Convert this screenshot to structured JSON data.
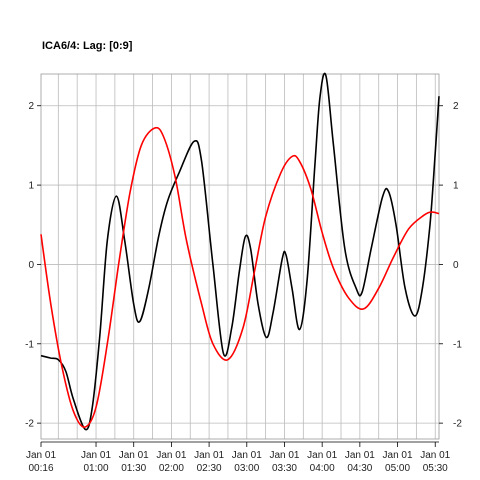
{
  "chart_data": {
    "type": "line",
    "title": "ICA6/4:  Lag: [0:9]",
    "xlabel": "",
    "ylabel": "",
    "xlim": [
      0.27,
      5.55
    ],
    "ylim": [
      -2.2,
      2.4
    ],
    "grid": true,
    "legend": "none",
    "x_ticks": [
      {
        "value": 0.27,
        "line1": "Jan 01",
        "line2": "00:16"
      },
      {
        "value": 1.0,
        "line1": "Jan 01",
        "line2": "01:00"
      },
      {
        "value": 1.5,
        "line1": "Jan 01",
        "line2": "01:30"
      },
      {
        "value": 2.0,
        "line1": "Jan 01",
        "line2": "02:00"
      },
      {
        "value": 2.5,
        "line1": "Jan 01",
        "line2": "02:30"
      },
      {
        "value": 3.0,
        "line1": "Jan 01",
        "line2": "03:00"
      },
      {
        "value": 3.5,
        "line1": "Jan 01",
        "line2": "03:30"
      },
      {
        "value": 4.0,
        "line1": "Jan 01",
        "line2": "04:00"
      },
      {
        "value": 4.5,
        "line1": "Jan 01",
        "line2": "04:30"
      },
      {
        "value": 5.0,
        "line1": "Jan 01",
        "line2": "05:00"
      },
      {
        "value": 5.5,
        "line1": "Jan 01",
        "line2": "05:30"
      }
    ],
    "x_minor_grid": [
      0.25,
      0.5,
      0.75,
      1.0,
      1.25,
      1.5,
      1.75,
      2.0,
      2.25,
      2.5,
      2.75,
      3.0,
      3.25,
      3.5,
      3.75,
      4.0,
      4.25,
      4.5,
      4.75,
      5.0,
      5.25,
      5.5
    ],
    "y_ticks": [
      -2,
      -1,
      0,
      1,
      2
    ],
    "series": [
      {
        "color": "#000000",
        "points": [
          [
            0.27,
            -1.15
          ],
          [
            0.4,
            -1.18
          ],
          [
            0.5,
            -1.2
          ],
          [
            0.6,
            -1.35
          ],
          [
            0.7,
            -1.7
          ],
          [
            0.86,
            -2.08
          ],
          [
            0.95,
            -1.8
          ],
          [
            1.05,
            -0.9
          ],
          [
            1.15,
            0.3
          ],
          [
            1.27,
            0.86
          ],
          [
            1.38,
            0.3
          ],
          [
            1.5,
            -0.5
          ],
          [
            1.58,
            -0.72
          ],
          [
            1.7,
            -0.3
          ],
          [
            1.83,
            0.35
          ],
          [
            1.95,
            0.8
          ],
          [
            2.1,
            1.15
          ],
          [
            2.3,
            1.55
          ],
          [
            2.4,
            1.3
          ],
          [
            2.55,
            0.0
          ],
          [
            2.69,
            -1.12
          ],
          [
            2.8,
            -0.8
          ],
          [
            2.9,
            -0.1
          ],
          [
            2.98,
            0.35
          ],
          [
            3.05,
            0.2
          ],
          [
            3.15,
            -0.5
          ],
          [
            3.26,
            -0.92
          ],
          [
            3.35,
            -0.6
          ],
          [
            3.47,
            0.07
          ],
          [
            3.52,
            0.12
          ],
          [
            3.6,
            -0.3
          ],
          [
            3.7,
            -0.82
          ],
          [
            3.8,
            -0.2
          ],
          [
            3.9,
            1.2
          ],
          [
            3.97,
            2.1
          ],
          [
            4.05,
            2.38
          ],
          [
            4.15,
            1.5
          ],
          [
            4.3,
            0.2
          ],
          [
            4.45,
            -0.3
          ],
          [
            4.53,
            -0.35
          ],
          [
            4.65,
            0.2
          ],
          [
            4.8,
            0.85
          ],
          [
            4.88,
            0.92
          ],
          [
            4.98,
            0.5
          ],
          [
            5.1,
            -0.3
          ],
          [
            5.23,
            -0.65
          ],
          [
            5.33,
            -0.3
          ],
          [
            5.43,
            0.5
          ],
          [
            5.5,
            1.4
          ],
          [
            5.55,
            2.12
          ]
        ]
      },
      {
        "color": "#ff0000",
        "points": [
          [
            0.27,
            0.38
          ],
          [
            0.4,
            -0.5
          ],
          [
            0.55,
            -1.3
          ],
          [
            0.7,
            -1.85
          ],
          [
            0.85,
            -2.05
          ],
          [
            1.0,
            -1.8
          ],
          [
            1.15,
            -1.0
          ],
          [
            1.3,
            0.0
          ],
          [
            1.45,
            0.9
          ],
          [
            1.6,
            1.5
          ],
          [
            1.78,
            1.72
          ],
          [
            1.9,
            1.6
          ],
          [
            2.05,
            1.1
          ],
          [
            2.2,
            0.3
          ],
          [
            2.4,
            -0.5
          ],
          [
            2.55,
            -1.0
          ],
          [
            2.75,
            -1.2
          ],
          [
            2.95,
            -0.8
          ],
          [
            3.1,
            -0.1
          ],
          [
            3.25,
            0.6
          ],
          [
            3.45,
            1.15
          ],
          [
            3.6,
            1.36
          ],
          [
            3.7,
            1.3
          ],
          [
            3.85,
            0.95
          ],
          [
            4.0,
            0.4
          ],
          [
            4.15,
            -0.05
          ],
          [
            4.35,
            -0.42
          ],
          [
            4.55,
            -0.56
          ],
          [
            4.75,
            -0.3
          ],
          [
            4.95,
            0.1
          ],
          [
            5.15,
            0.45
          ],
          [
            5.35,
            0.62
          ],
          [
            5.45,
            0.66
          ],
          [
            5.55,
            0.64
          ]
        ]
      }
    ]
  }
}
